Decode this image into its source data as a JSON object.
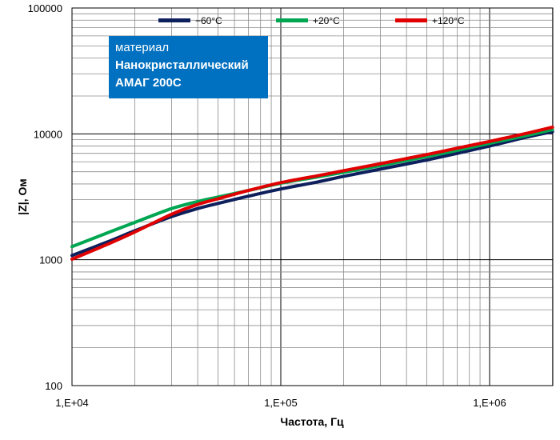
{
  "chart_data": {
    "type": "line",
    "xlabel": "Частота, Гц",
    "ylabel": "|Z|, Ом",
    "x_scale": "log",
    "y_scale": "log",
    "xlim": [
      10000,
      2000000
    ],
    "ylim": [
      100,
      100000
    ],
    "x_tick_labels": [
      "1,E+04",
      "1,E+05",
      "1,E+06"
    ],
    "y_tick_labels": [
      "100",
      "1000",
      "10000",
      "100000"
    ],
    "grid": true,
    "legend_position": "top",
    "annotation": {
      "line1": "материал",
      "line2": "Нанокристаллический",
      "line3": "АМАГ 200С"
    },
    "series": [
      {
        "name": "−60°C",
        "color": "#0d1f5c",
        "x": [
          10000,
          15000,
          20000,
          30000,
          40000,
          50000,
          70000,
          100000,
          150000,
          200000,
          300000,
          500000,
          700000,
          1000000,
          1500000,
          2000000
        ],
        "y": [
          1080,
          1400,
          1700,
          2200,
          2550,
          2800,
          3200,
          3650,
          4150,
          4600,
          5250,
          6200,
          7000,
          8000,
          9400,
          10400
        ]
      },
      {
        "name": "+20°C",
        "color": "#00a651",
        "x": [
          10000,
          15000,
          20000,
          30000,
          40000,
          50000,
          70000,
          100000,
          150000,
          200000,
          300000,
          500000,
          700000,
          1000000,
          1500000,
          2000000
        ],
        "y": [
          1270,
          1650,
          1980,
          2550,
          2900,
          3150,
          3550,
          4050,
          4550,
          4950,
          5600,
          6600,
          7400,
          8400,
          9700,
          10800
        ]
      },
      {
        "name": "+120°C",
        "color": "#e00000",
        "x": [
          10000,
          15000,
          20000,
          30000,
          40000,
          50000,
          70000,
          100000,
          150000,
          200000,
          300000,
          500000,
          700000,
          1000000,
          1500000,
          2000000
        ],
        "y": [
          1010,
          1340,
          1660,
          2300,
          2750,
          3050,
          3550,
          4100,
          4650,
          5100,
          5800,
          6850,
          7700,
          8700,
          10100,
          11300
        ]
      }
    ]
  }
}
